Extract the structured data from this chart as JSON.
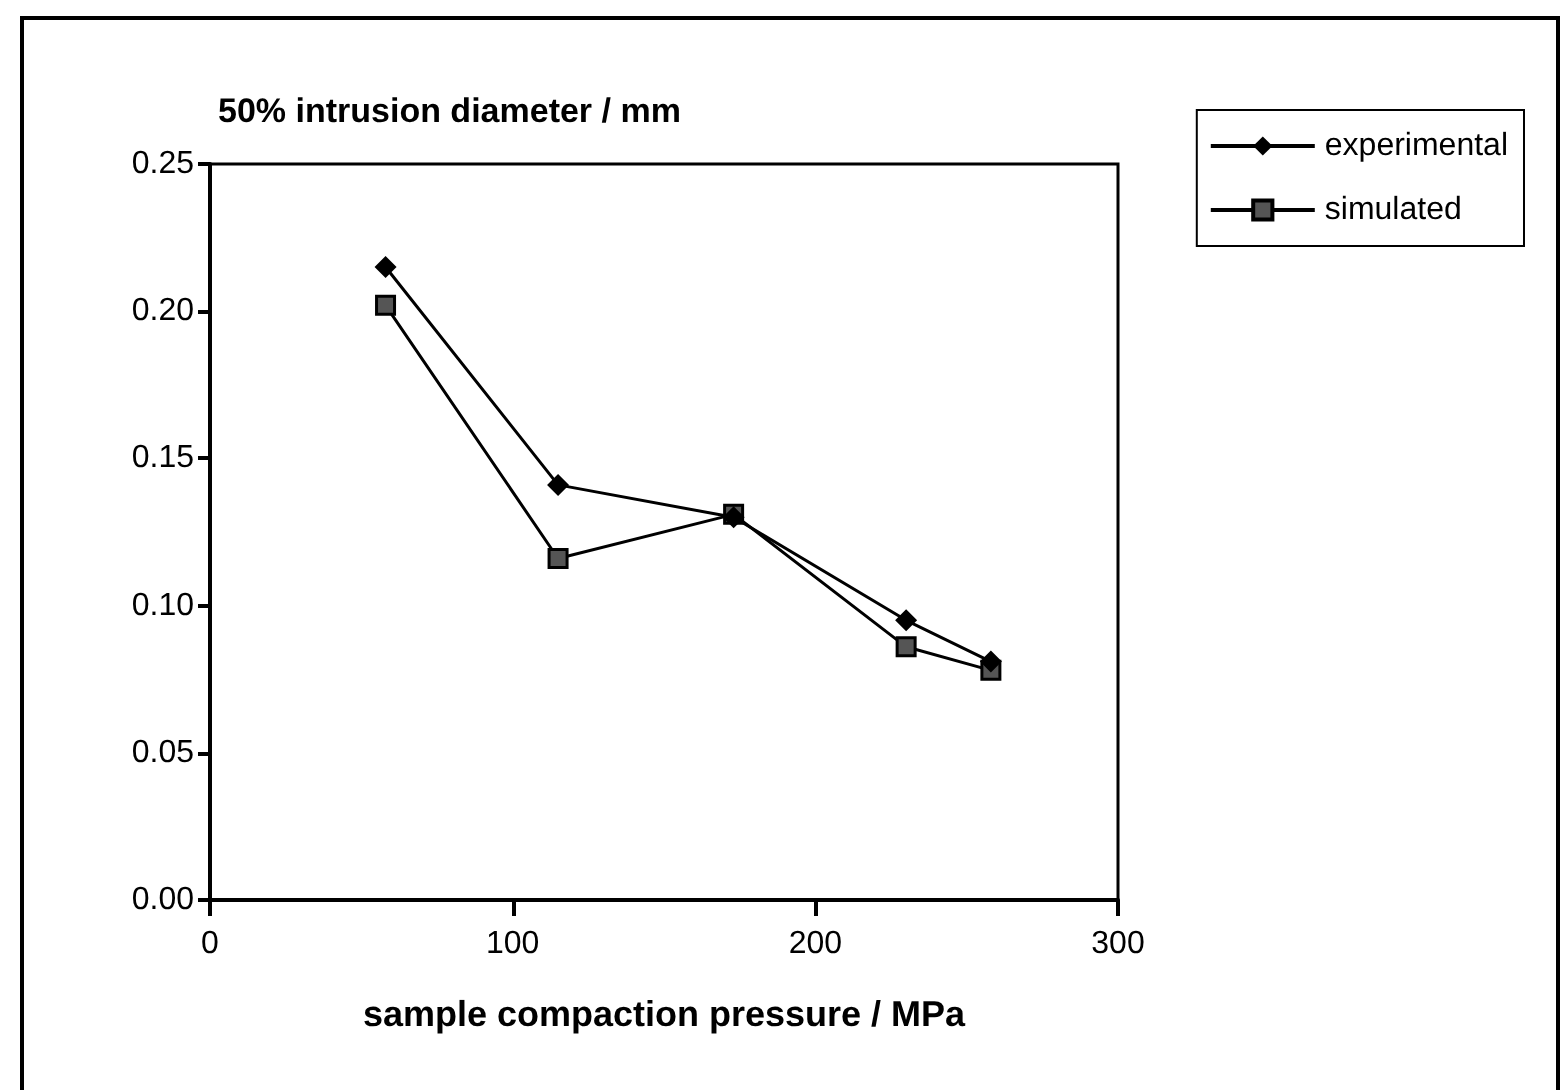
{
  "chart_data": {
    "type": "line",
    "ylabel": "50% intrusion diameter / mm",
    "xlabel": "sample compaction pressure / MPa",
    "x": [
      58,
      115,
      173,
      230,
      258
    ],
    "series": [
      {
        "name": "experimental",
        "color": "#000000",
        "marker": "diamond",
        "values": [
          0.215,
          0.141,
          0.13,
          0.095,
          0.081
        ]
      },
      {
        "name": "simulated",
        "color": "#000000",
        "marker": "square",
        "values": [
          0.202,
          0.116,
          0.131,
          0.086,
          0.078
        ]
      }
    ],
    "xlim": [
      0,
      300
    ],
    "xticks": [
      0,
      100,
      200,
      300
    ],
    "ylim": [
      0,
      0.25
    ],
    "yticks": [
      {
        "value": 0,
        "label": "0.00"
      },
      {
        "value": 0.05,
        "label": "0.05"
      },
      {
        "value": 0.1,
        "label": "0.10"
      },
      {
        "value": 0.15,
        "label": "0.15"
      },
      {
        "value": 0.2,
        "label": "0.20"
      },
      {
        "value": 0.25,
        "label": "0.25"
      }
    ],
    "grid": false,
    "legend": "right",
    "line_style": "solid"
  }
}
